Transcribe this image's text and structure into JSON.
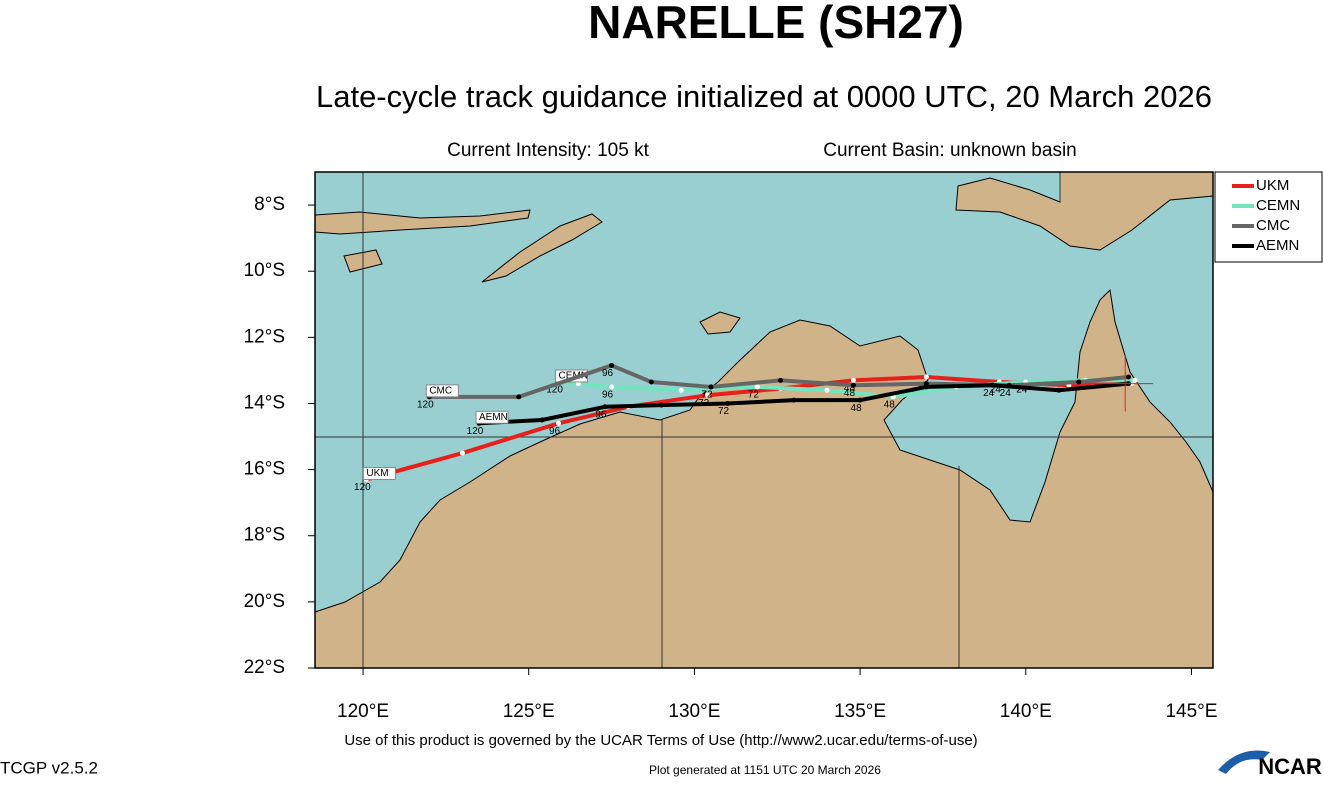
{
  "chart_data": {
    "type": "track",
    "title": "NARELLE (SH27)",
    "subtitle": "Late-cycle track guidance initialized at 0000 UTC, 20 March 2026",
    "current_intensity": "Current Intensity: 105 kt",
    "current_basin": "Current Basin: unknown basin",
    "xlim": [
      118.55,
      145.65
    ],
    "ylim": [
      -22,
      -7
    ],
    "xticks": [
      {
        "value": 120,
        "label": "120°E"
      },
      {
        "value": 125,
        "label": "125°E"
      },
      {
        "value": 130,
        "label": "130°E"
      },
      {
        "value": 135,
        "label": "135°E"
      },
      {
        "value": 140,
        "label": "140°E"
      },
      {
        "value": 145,
        "label": "145°E"
      }
    ],
    "yticks": [
      {
        "value": -8,
        "label": "8°S"
      },
      {
        "value": -10,
        "label": "10°S"
      },
      {
        "value": -12,
        "label": "12°S"
      },
      {
        "value": -14,
        "label": "14°S"
      },
      {
        "value": -16,
        "label": "16°S"
      },
      {
        "value": -18,
        "label": "18°S"
      },
      {
        "value": -20,
        "label": "20°S"
      },
      {
        "value": -22,
        "label": "22°S"
      }
    ],
    "current_position": {
      "x": 143.0,
      "y": -13.4
    },
    "series": [
      {
        "name": "UKM",
        "color": "#e8201b",
        "marker": "#ffffff",
        "x": [
          143.2,
          141.3,
          139.2,
          137.0,
          134.8,
          132.6,
          130.4,
          128.0,
          125.9,
          123.0,
          120.1
        ],
        "values": [
          -13.4,
          -13.45,
          -13.35,
          -13.2,
          -13.3,
          -13.55,
          -13.75,
          -14.1,
          -14.6,
          -15.5,
          -16.3
        ],
        "point_labels": [
          null,
          null,
          "24",
          null,
          "48",
          null,
          "72",
          null,
          "96",
          null,
          "120"
        ]
      },
      {
        "name": "CEMN",
        "color": "#72e4bf",
        "marker": "#ffffff",
        "x": [
          143.3,
          141.8,
          140.0,
          137.9,
          136.0,
          134.0,
          131.9,
          129.6,
          127.5,
          126.5,
          125.9
        ],
        "values": [
          -13.3,
          -13.3,
          -13.35,
          -13.5,
          -13.8,
          -13.6,
          -13.5,
          -13.6,
          -13.5,
          -13.4,
          -13.35
        ],
        "point_labels": [
          null,
          null,
          "24",
          null,
          "48",
          null,
          "72",
          null,
          "96",
          null,
          "120"
        ]
      },
      {
        "name": "CMC",
        "color": "#666666",
        "marker": "#000000",
        "x": [
          143.1,
          141.6,
          139.5,
          137.0,
          134.8,
          132.6,
          130.5,
          128.7,
          127.5,
          124.7,
          122.0
        ],
        "values": [
          -13.2,
          -13.35,
          -13.45,
          -13.4,
          -13.45,
          -13.3,
          -13.5,
          -13.35,
          -12.85,
          -13.8,
          -13.8
        ],
        "point_labels": [
          null,
          null,
          "24",
          null,
          "48",
          null,
          "72",
          null,
          "96",
          null,
          "120"
        ]
      },
      {
        "name": "AEMN",
        "color": "#000000",
        "marker": "#000000",
        "x": [
          143.1,
          141.0,
          139.0,
          137.0,
          135.0,
          133.0,
          131.0,
          129.0,
          127.3,
          125.4,
          123.5
        ],
        "values": [
          -13.4,
          -13.6,
          -13.45,
          -13.5,
          -13.9,
          -13.9,
          -14.0,
          -14.05,
          -14.1,
          -14.5,
          -14.6
        ],
        "point_labels": [
          null,
          null,
          "24",
          null,
          "48",
          null,
          "72",
          null,
          "96",
          null,
          "120"
        ]
      }
    ]
  },
  "footer": {
    "terms": "Use of this product is governed by the UCAR Terms of Use (http://www2.ucar.edu/terms-of-use)",
    "version": "TCGP v2.5.2",
    "generated": "Plot generated at 1151 UTC   20 March 2026",
    "logo": "NCAR"
  }
}
